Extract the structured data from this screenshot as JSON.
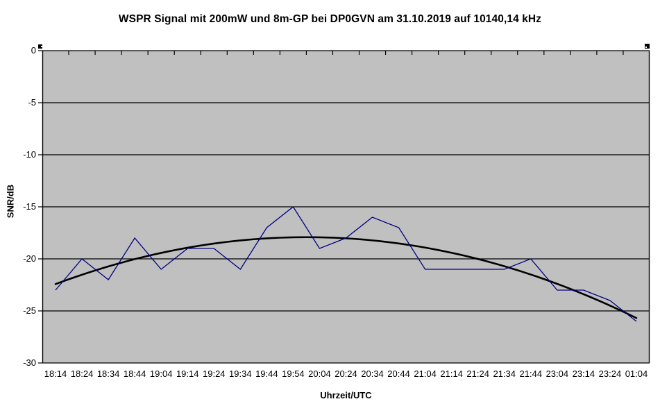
{
  "chart_data": {
    "type": "line",
    "title": "WSPR Signal mit 200mW und 8m-GP bei DP0GVN am 31.10.2019 auf 10140,14 kHz",
    "xlabel": "Uhrzeit/UTC",
    "ylabel": "SNR/dB",
    "categories": [
      "18:14",
      "18:24",
      "18:34",
      "18:44",
      "19:04",
      "19:14",
      "19:24",
      "19:34",
      "19:44",
      "19:54",
      "20:04",
      "20:24",
      "20:34",
      "20:44",
      "21:04",
      "21:14",
      "21:24",
      "21:34",
      "21:44",
      "23:04",
      "23:14",
      "23:24",
      "01:04"
    ],
    "series": [
      {
        "name": "SNR",
        "color": "#000080",
        "values": [
          -23,
          -20,
          -22,
          -18,
          -21,
          -19,
          -19,
          -21,
          -17,
          -15,
          -19,
          -18,
          -16,
          -17,
          -21,
          -21,
          -21,
          -21,
          -20,
          -23,
          -23,
          -24,
          -26
        ]
      }
    ],
    "trendline": {
      "type": "polynomial",
      "order": 2,
      "color": "#000000"
    },
    "ylim": [
      -30,
      0
    ],
    "yticks": [
      0,
      -5,
      -10,
      -15,
      -20,
      -25,
      -30
    ],
    "grid": true,
    "legend": "none",
    "plot_bg": "#c0c0c0",
    "gridline_color": "#000000",
    "axis_color": "#000000"
  }
}
